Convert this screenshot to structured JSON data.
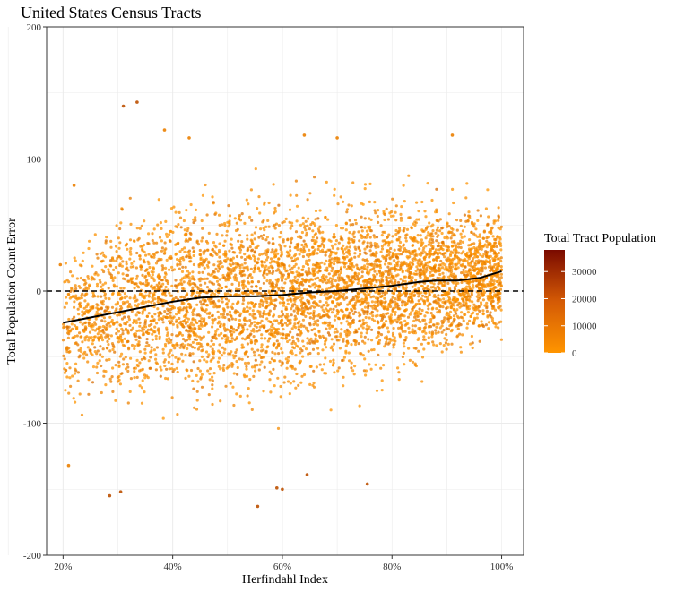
{
  "chart_data": {
    "type": "scatter",
    "title": "United States Census Tracts",
    "xlabel": "Herfindahl Index",
    "ylabel": "Total Population Count Error",
    "xlim": [
      0.17,
      1.04
    ],
    "ylim": [
      -200,
      200
    ],
    "x_ticks": [
      0.2,
      0.4,
      0.6,
      0.8,
      1.0
    ],
    "x_tick_labels": [
      "20%",
      "40%",
      "60%",
      "80%",
      "100%"
    ],
    "y_ticks": [
      -200,
      -100,
      0,
      100,
      200
    ],
    "y_tick_labels": [
      "-200",
      "-100",
      "0",
      "100",
      "200"
    ],
    "grid": true,
    "reference_line": {
      "y": 0,
      "style": "dashed",
      "color": "#000000"
    },
    "smooth_line": {
      "color": "#000000",
      "x": [
        0.2,
        0.25,
        0.3,
        0.35,
        0.4,
        0.45,
        0.5,
        0.55,
        0.6,
        0.65,
        0.7,
        0.75,
        0.8,
        0.85,
        0.88,
        0.92,
        0.96,
        1.0
      ],
      "y": [
        -24,
        -20,
        -16,
        -12,
        -8,
        -5,
        -4,
        -4,
        -3,
        -1,
        0,
        2,
        4,
        7,
        8,
        8,
        10,
        15
      ]
    },
    "scatter_summary": {
      "color_low": "#ff9500",
      "color_high": "#7a0a00",
      "x_range": [
        0.2,
        1.0
      ],
      "band_center_y": [
        [
          0.2,
          -24
        ],
        [
          0.4,
          -8
        ],
        [
          0.6,
          -3
        ],
        [
          0.8,
          4
        ],
        [
          1.0,
          15
        ]
      ],
      "band_half_width": [
        [
          0.2,
          45
        ],
        [
          0.3,
          55
        ],
        [
          0.5,
          60
        ],
        [
          0.7,
          55
        ],
        [
          0.9,
          45
        ],
        [
          1.0,
          38
        ]
      ],
      "notable_points": [
        [
          0.31,
          140
        ],
        [
          0.335,
          143
        ],
        [
          0.385,
          122
        ],
        [
          0.43,
          116
        ],
        [
          0.64,
          118
        ],
        [
          0.7,
          116
        ],
        [
          0.91,
          118
        ],
        [
          0.285,
          -155
        ],
        [
          0.305,
          -152
        ],
        [
          0.555,
          -163
        ],
        [
          0.59,
          -149
        ],
        [
          0.6,
          -150
        ],
        [
          0.645,
          -139
        ],
        [
          0.755,
          -146
        ],
        [
          0.21,
          -132
        ],
        [
          0.22,
          80
        ],
        [
          0.195,
          20
        ],
        [
          0.205,
          -60
        ]
      ]
    },
    "legend": {
      "title": "Total Tract Population",
      "type": "colorbar",
      "placement": "right",
      "min": 0,
      "max": 38000,
      "ticks": [
        0,
        10000,
        20000,
        30000
      ],
      "tick_labels": [
        "0",
        "10000",
        "20000",
        "30000"
      ],
      "color_low": "#ff9500",
      "color_high": "#7a0a00"
    }
  }
}
